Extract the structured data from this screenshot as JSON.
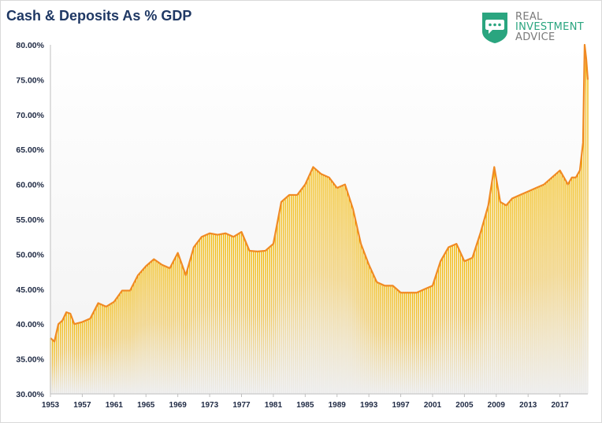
{
  "header": {
    "title": "Cash & Deposits As % GDP"
  },
  "logo": {
    "line1": "REAL",
    "line2": "INVESTMENT",
    "line3": "ADVICE",
    "icon": "shield-chat-icon",
    "brand_color": "#2aa57f",
    "text_color": "#7a7a7a"
  },
  "colors": {
    "line": "#f08a24",
    "bar_top": "#f2b800",
    "bar_bottom": "#e8e8e8",
    "axis_text": "#1f2a44",
    "title": "#1f3864"
  },
  "chart_data": {
    "type": "area",
    "title": "Cash & Deposits As % GDP",
    "xlabel": "",
    "ylabel": "",
    "ylim": [
      30,
      80
    ],
    "xlim": [
      1953,
      2020.5
    ],
    "y_ticks": [
      30,
      35,
      40,
      45,
      50,
      55,
      60,
      65,
      70,
      75,
      80
    ],
    "y_tick_labels": [
      "30.00%",
      "35.00%",
      "40.00%",
      "45.00%",
      "50.00%",
      "55.00%",
      "60.00%",
      "65.00%",
      "70.00%",
      "75.00%",
      "80.00%"
    ],
    "x_tick_labels": [
      "1953",
      "1957",
      "1961",
      "1965",
      "1969",
      "1973",
      "1977",
      "1981",
      "1985",
      "1989",
      "1993",
      "1997",
      "2001",
      "2005",
      "2009",
      "2013",
      "2017"
    ],
    "grid": false,
    "legend": "none",
    "series": [
      {
        "x": [
          1953,
          1953.5,
          1954,
          1954.5,
          1955,
          1955.5,
          1956,
          1957,
          1958,
          1959,
          1960,
          1961,
          1962,
          1963,
          1964,
          1965,
          1966,
          1967,
          1968,
          1969,
          1970,
          1971,
          1972,
          1973,
          1974,
          1975,
          1976,
          1977,
          1978,
          1979,
          1980,
          1981,
          1982,
          1983,
          1984,
          1985,
          1986,
          1987,
          1988,
          1989,
          1990,
          1991,
          1992,
          1993,
          1994,
          1995,
          1996,
          1997,
          1998,
          1999,
          2000,
          2001,
          2002,
          2003,
          2004,
          2005,
          2006,
          2007,
          2008,
          2008.75,
          2009.5,
          2010.25,
          2011,
          2012,
          2013,
          2014,
          2015,
          2016,
          2017,
          2017.5,
          2018,
          2018.5,
          2019,
          2019.5,
          2019.9,
          2020.1,
          2020.3,
          2020.5
        ],
        "values": [
          38.0,
          37.5,
          40.0,
          40.5,
          41.7,
          41.5,
          40.0,
          40.3,
          40.8,
          43.0,
          42.5,
          43.2,
          44.8,
          44.8,
          47.0,
          48.3,
          49.3,
          48.5,
          48.0,
          50.2,
          47.0,
          51.0,
          52.5,
          53.0,
          52.8,
          53.0,
          52.5,
          53.2,
          50.5,
          50.4,
          50.5,
          51.5,
          57.5,
          58.5,
          58.5,
          60.0,
          62.5,
          61.5,
          61.0,
          59.5,
          60.0,
          56.5,
          51.5,
          48.5,
          46.0,
          45.5,
          45.5,
          44.5,
          44.5,
          44.5,
          45.0,
          45.5,
          49.0,
          51.0,
          51.5,
          49.0,
          49.5,
          53.0,
          57.0,
          62.5,
          57.5,
          57.0,
          58.0,
          58.5,
          59.0,
          59.5,
          60.0,
          61.0,
          62.0,
          61.0,
          60.0,
          61.0,
          61.0,
          62.0,
          66.0,
          80.0,
          78.0,
          75.0
        ]
      }
    ]
  }
}
